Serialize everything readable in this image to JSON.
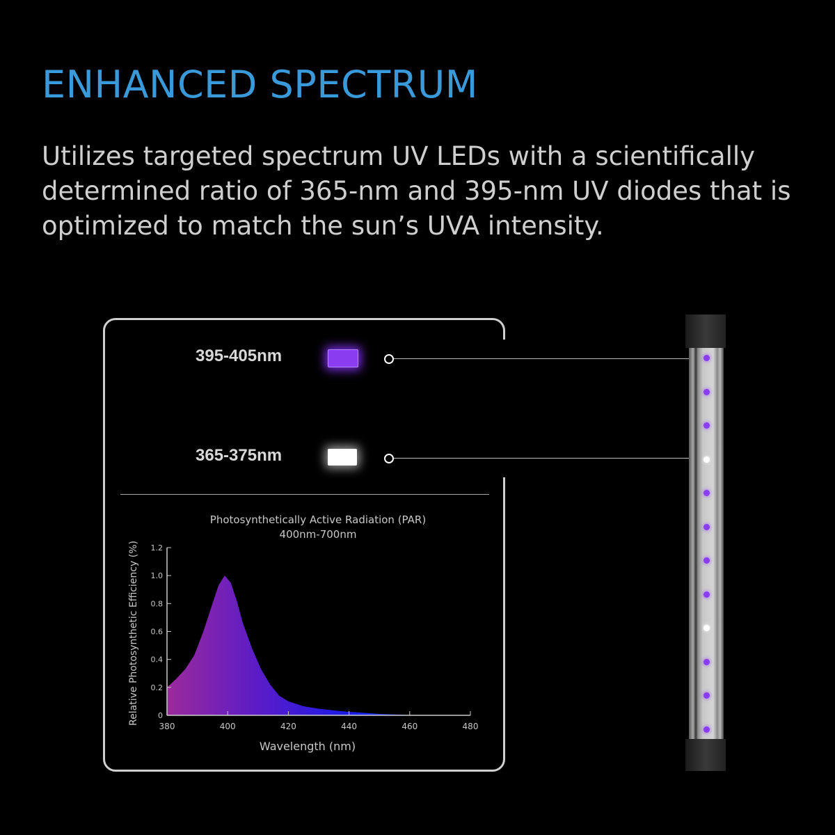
{
  "header": {
    "title": "ENHANCED SPECTRUM",
    "description": "Utilizes targeted spectrum UV LEDs with a scientifically determined ratio of 365-nm and 395-nm UV diodes that is optimized to match the sun’s UVA intensity."
  },
  "legend": [
    {
      "label": "395-405nm",
      "color": "#8a3cf0"
    },
    {
      "label": "365-375nm",
      "color": "#ffffff"
    }
  ],
  "product": {
    "led_colors": [
      "violet",
      "violet",
      "violet",
      "white",
      "violet",
      "violet",
      "violet",
      "violet",
      "white",
      "violet",
      "violet",
      "violet"
    ]
  },
  "chart_data": {
    "type": "area",
    "title": "Photosynthetically Active Radiation (PAR)",
    "subtitle": "400nm-700nm",
    "xlabel": "Wavelength (nm)",
    "ylabel": "Relative Photosynthetic Efficiency (%)",
    "xlim": [
      380,
      480
    ],
    "ylim": [
      0,
      1.2
    ],
    "xticks": [
      "380",
      "400",
      "420",
      "440",
      "460",
      "480"
    ],
    "yticks": [
      "0",
      "0.2",
      "0.4",
      "0.6",
      "0.8",
      "1.0",
      "1.2"
    ],
    "grid": false,
    "fill_gradient": [
      "#9b2a9c",
      "#5a1cc8",
      "#1a1ae8",
      "#1f5af0"
    ],
    "x": [
      380,
      383,
      386,
      389,
      392,
      395,
      397,
      399,
      401,
      403,
      405,
      408,
      411,
      414,
      417,
      420,
      425,
      430,
      435,
      440,
      450,
      460,
      470
    ],
    "y": [
      0.2,
      0.26,
      0.33,
      0.43,
      0.6,
      0.8,
      0.93,
      1.0,
      0.95,
      0.82,
      0.66,
      0.48,
      0.33,
      0.22,
      0.14,
      0.1,
      0.065,
      0.047,
      0.035,
      0.025,
      0.01,
      0.002,
      0
    ]
  }
}
